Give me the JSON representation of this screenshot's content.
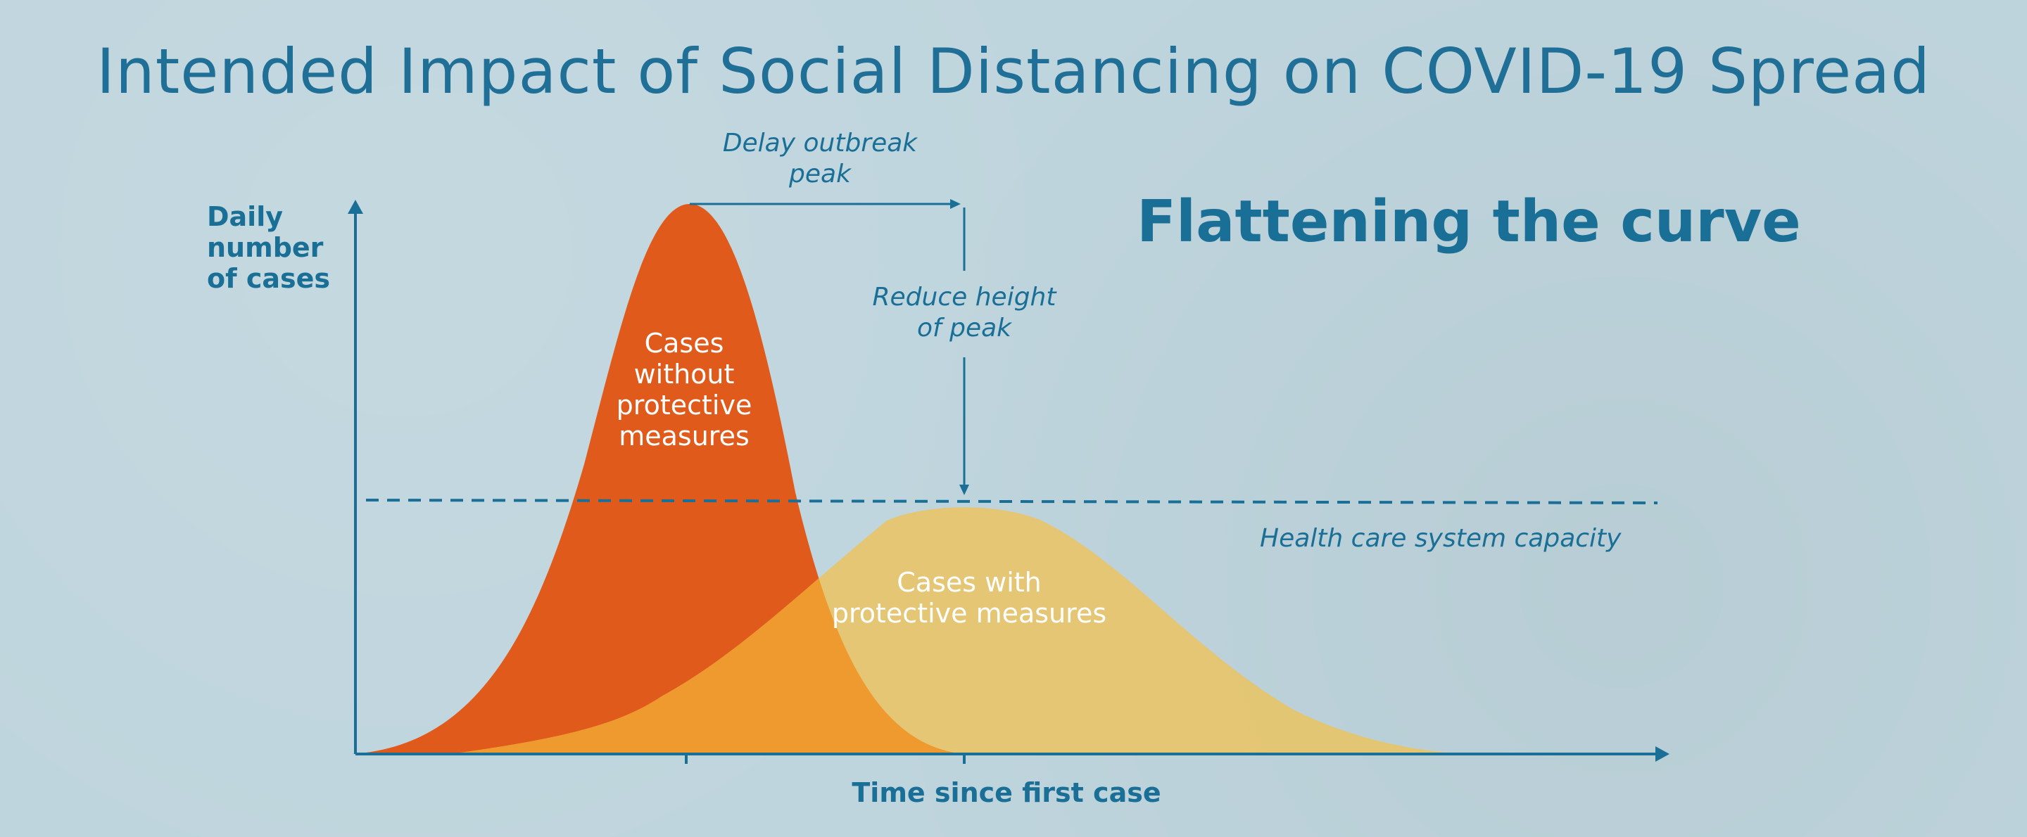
{
  "title": "Intended Impact of Social Distancing on COVID-19 Spread",
  "subtitle": "Flattening the curve",
  "axes": {
    "ylabel": "Daily number of cases",
    "xlabel": "Time since first case"
  },
  "annotations": {
    "delay_peak": "Delay outbreak peak",
    "reduce_peak": "Reduce height of peak",
    "capacity": "Health care system capacity"
  },
  "curves": {
    "without": {
      "label": "Cases without protective measures",
      "color": "#e05a1c"
    },
    "with": {
      "label": "Cases with protective measures",
      "color": "#f3ba45"
    }
  },
  "colors": {
    "text": "#1a6f96",
    "background": "#bfd5dd",
    "overlap": "#ee9a2f"
  }
}
